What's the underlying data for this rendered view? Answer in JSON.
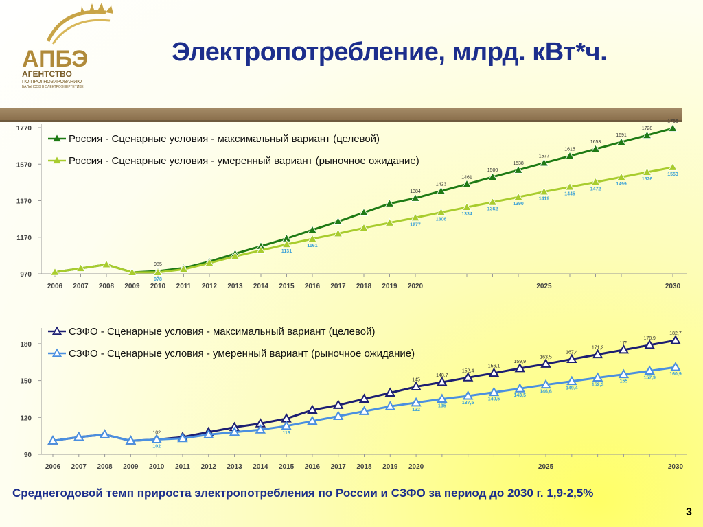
{
  "logo": {
    "abbr": "АПБЭ",
    "line1": "АГЕНТСТВО",
    "line2": "ПО ПРОГНОЗИРОВАНИЮ",
    "line3": "БАЛАНСОВ В ЭЛЕКТРОЭНЕРГЕТИКЕ"
  },
  "title": "Электропотребление, млрд. кВт*ч.",
  "bottom_note": "Среднегодовой темп прироста электропотребления по России и СЗФО за период до 2030 г. 1,9-2,5%",
  "page_number": "3",
  "colors": {
    "title": "#1c2e8c",
    "russia_max": "#1e7a14",
    "russia_mod": "#a8cc2e",
    "szfo_max": "#1c1e72",
    "szfo_mod": "#4a8fe0",
    "label_blue": "#3aa0d8"
  },
  "chart_data": [
    {
      "type": "line",
      "x": [
        2006,
        2007,
        2008,
        2009,
        2010,
        2011,
        2012,
        2013,
        2014,
        2015,
        2016,
        2017,
        2018,
        2019,
        2020,
        2021,
        2022,
        2023,
        2024,
        2025,
        2026,
        2027,
        2028,
        2029,
        2030
      ],
      "x_tick_labels": [
        "2006",
        "2007",
        "2008",
        "2009",
        "2010",
        "2011",
        "2012",
        "2013",
        "2014",
        "2015",
        "2016",
        "2017",
        "2018",
        "2019",
        "2020",
        "2025",
        "2030"
      ],
      "ylim": [
        970,
        1770
      ],
      "y_ticks": [
        "970",
        "1170",
        "1370",
        "1570",
        "1770"
      ],
      "legend_position": "top-left",
      "series": [
        {
          "name": "Россия - Сценарные условия - максимальный вариант (целевой)",
          "values": [
            979,
            1000,
            1021,
            978,
            985,
            1002,
            1037,
            1080,
            1121,
            1163,
            1210,
            1256,
            1305,
            1354,
            1384,
            1423,
            1461,
            1500,
            1538,
            1577,
            1615,
            1653,
            1691,
            1728,
            1766
          ],
          "data_labels": [
            "",
            "",
            "",
            "",
            "985",
            "",
            "",
            "",
            "",
            "",
            "",
            "",
            "",
            "",
            "1384",
            "1423",
            "1461",
            "1500",
            "1538",
            "1577",
            "1615",
            "1653",
            "1691",
            "1728",
            "1766"
          ]
        },
        {
          "name": "Россия - Сценарные условия - умеренный вариант (рыночное ожидание)",
          "values": [
            979,
            1000,
            1021,
            978,
            978,
            995,
            1029,
            1066,
            1098,
            1131,
            1161,
            1190,
            1221,
            1249,
            1277,
            1306,
            1334,
            1362,
            1390,
            1419,
            1445,
            1472,
            1499,
            1526,
            1553
          ],
          "data_labels": [
            "",
            "",
            "",
            "",
            "978",
            "",
            "",
            "",
            "",
            "1131",
            "1161",
            "",
            "",
            "",
            "1277",
            "1306",
            "1334",
            "1362",
            "1390",
            "1419",
            "1445",
            "1472",
            "1499",
            "1526",
            "1553"
          ]
        }
      ]
    },
    {
      "type": "line",
      "x": [
        2006,
        2007,
        2008,
        2009,
        2010,
        2011,
        2012,
        2013,
        2014,
        2015,
        2016,
        2017,
        2018,
        2019,
        2020,
        2021,
        2022,
        2023,
        2024,
        2025,
        2026,
        2027,
        2028,
        2029,
        2030
      ],
      "x_tick_labels": [
        "2006",
        "2007",
        "2008",
        "2009",
        "2010",
        "2011",
        "2012",
        "2013",
        "2014",
        "2015",
        "2016",
        "2017",
        "2018",
        "2019",
        "2020",
        "2025",
        "2030"
      ],
      "ylim": [
        90,
        190
      ],
      "y_ticks": [
        "90",
        "120",
        "150",
        "180"
      ],
      "legend_position": "top-left",
      "series": [
        {
          "name": "СЗФО - Сценарные условия - максимальный вариант (целевой)",
          "values": [
            101,
            104,
            106,
            101,
            102,
            104,
            108,
            112,
            115,
            119,
            126,
            130,
            135,
            140,
            145,
            148.7,
            152.4,
            156.1,
            159.9,
            163.5,
            167.4,
            171.2,
            175,
            178.9,
            182.7
          ],
          "data_labels": [
            "",
            "",
            "",
            "",
            "102",
            "",
            "",
            "",
            "",
            "",
            "",
            "",
            "",
            "",
            "145",
            "148,7",
            "152,4",
            "156,1",
            "159,9",
            "163,5",
            "167,4",
            "171,2",
            "175",
            "178,9",
            "182,7"
          ]
        },
        {
          "name": "СЗФО - Сценарные условия - умеренный вариант (рыночное ожидание)",
          "values": [
            101,
            104,
            106,
            101,
            102,
            103,
            106,
            108,
            110,
            113,
            117,
            121,
            125,
            129,
            132,
            135,
            137.5,
            140.5,
            143.5,
            146.6,
            149.4,
            152.3,
            155,
            157.9,
            160.9
          ],
          "data_labels": [
            "",
            "",
            "",
            "",
            "102",
            "",
            "",
            "",
            "",
            "113",
            "",
            "",
            "",
            "",
            "132",
            "135",
            "137,5",
            "140,5",
            "143,5",
            "146,6",
            "149,4",
            "152,3",
            "155",
            "157,9",
            "160,9"
          ]
        }
      ]
    }
  ]
}
